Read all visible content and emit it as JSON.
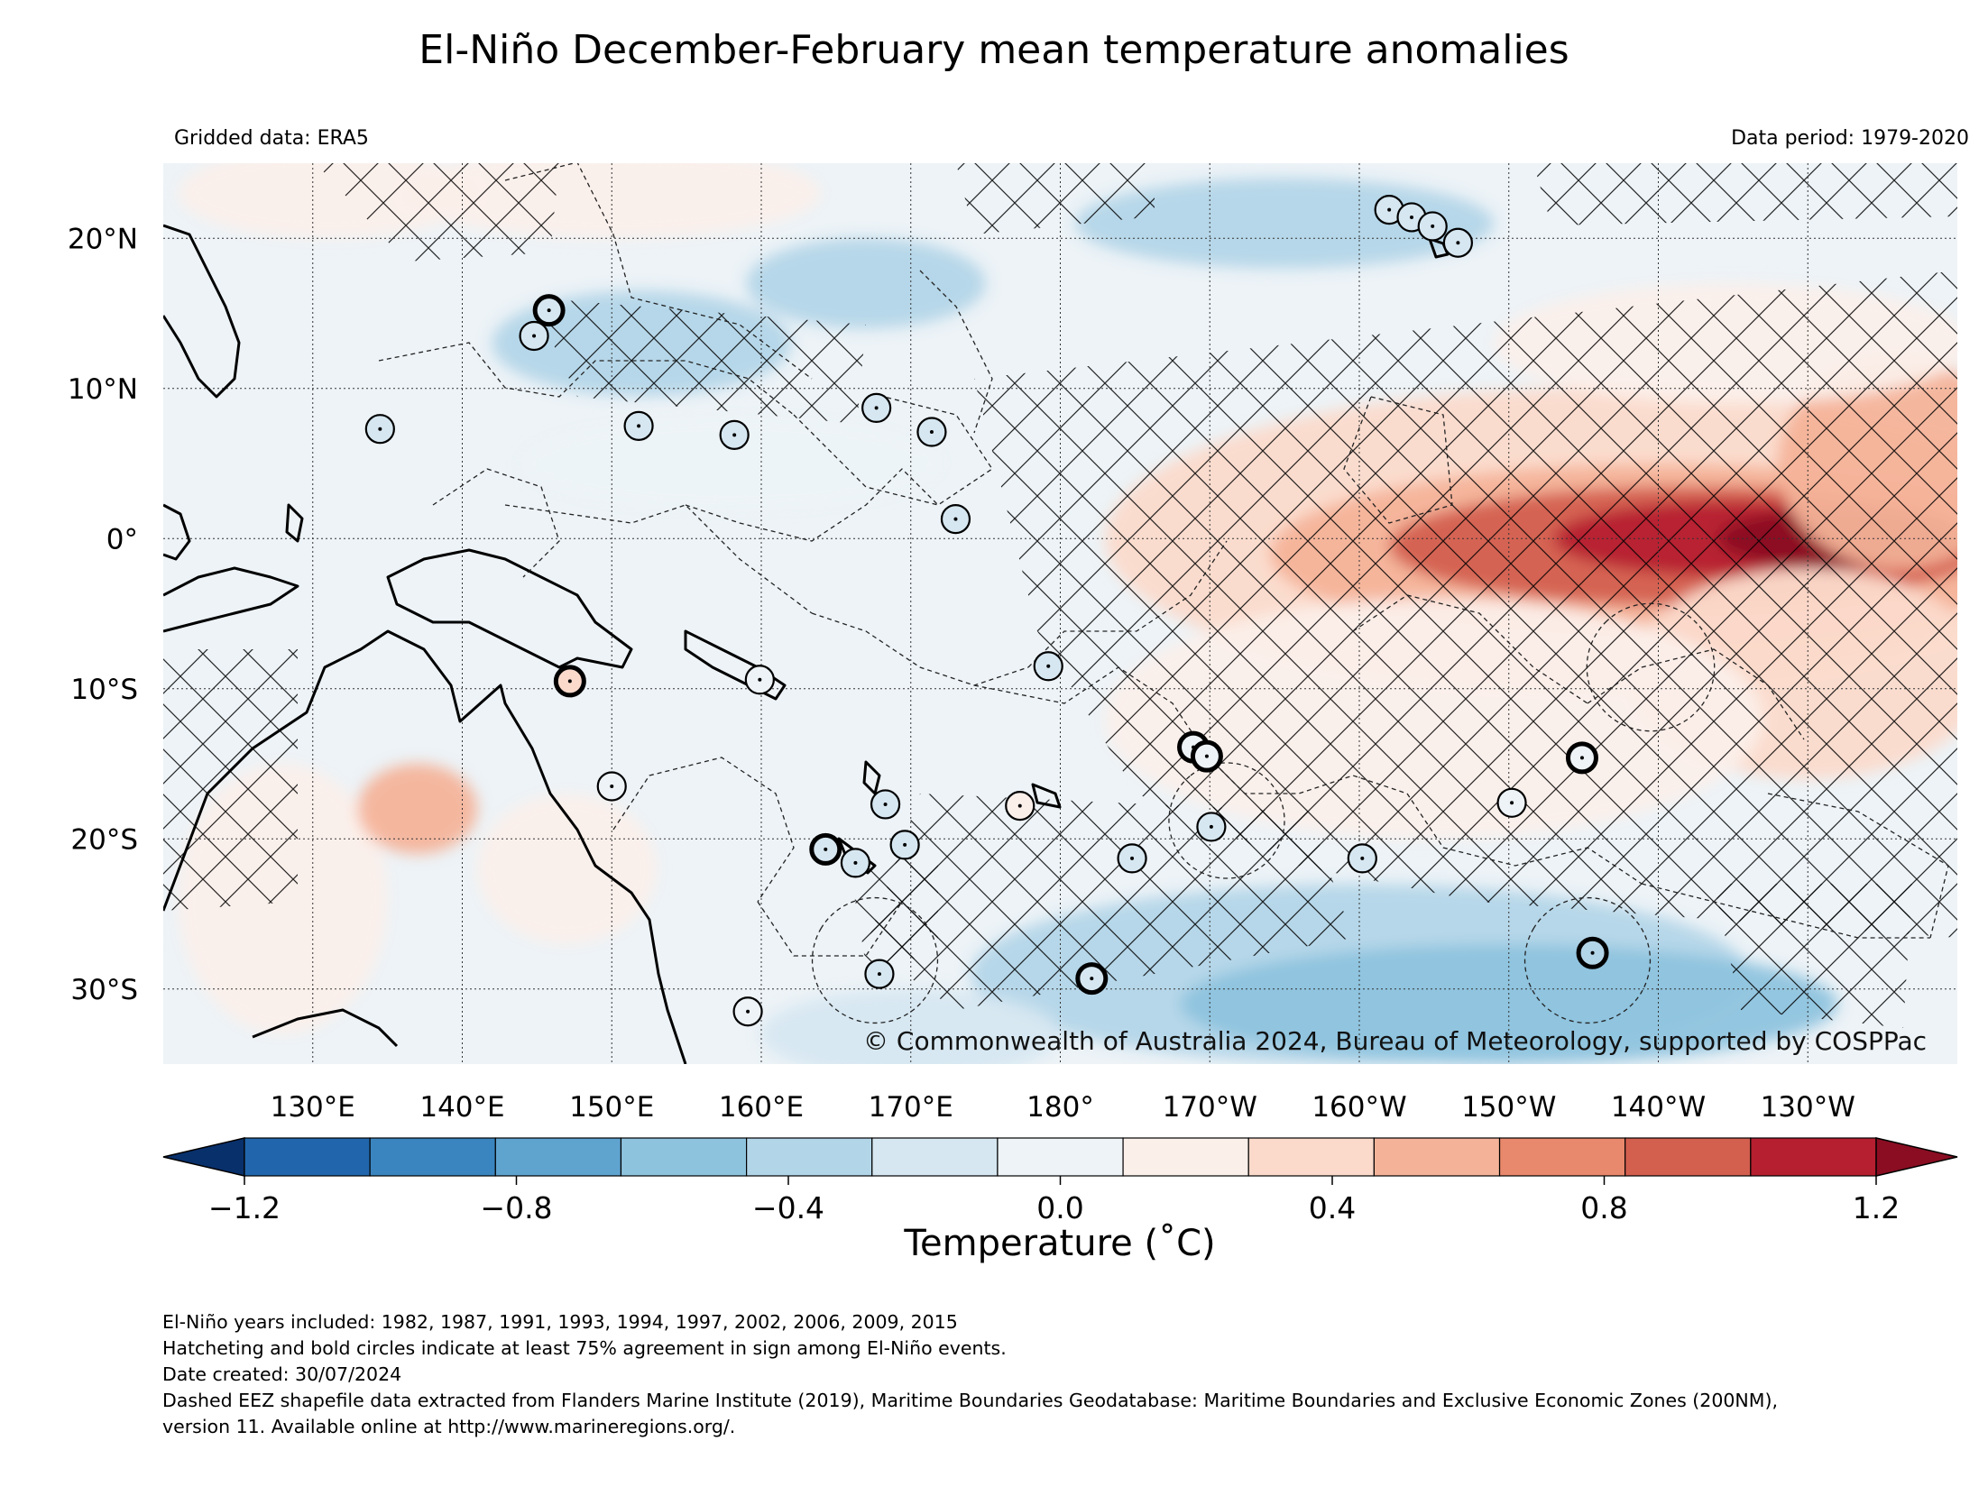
{
  "title": "El-Niño December-February mean temperature anomalies",
  "subtitle_left": "Gridded data: ERA5",
  "subtitle_right": "Data period: 1979-2020",
  "copyright": "© Commonwealth of Australia 2024, Bureau of Meteorology, supported by COSPPac",
  "footnotes": [
    "El-Niño years included: 1982, 1987, 1991, 1993, 1994, 1997, 2002, 2006, 2009, 2015",
    "Hatcheting and bold circles indicate at least 75% agreement in sign among El-Niño events.",
    "Date created: 30/07/2024",
    "Dashed EEZ shapefile data extracted from Flanders Marine Institute (2019), Maritime Boundaries Geodatabase: Maritime Boundaries and Exclusive Economic Zones (200NM),",
    "version 11. Available online at http://www.marineregions.org/."
  ],
  "map": {
    "extent": {
      "lon_min": 120,
      "lon_max": 240,
      "lat_min": -35,
      "lat_max": 25
    },
    "lon_ticks": [
      {
        "lon": 130,
        "label": "130°E"
      },
      {
        "lon": 140,
        "label": "140°E"
      },
      {
        "lon": 150,
        "label": "150°E"
      },
      {
        "lon": 160,
        "label": "160°E"
      },
      {
        "lon": 170,
        "label": "170°E"
      },
      {
        "lon": 180,
        "label": "180°"
      },
      {
        "lon": 190,
        "label": "170°W"
      },
      {
        "lon": 200,
        "label": "160°W"
      },
      {
        "lon": 210,
        "label": "150°W"
      },
      {
        "lon": 220,
        "label": "140°W"
      },
      {
        "lon": 230,
        "label": "130°W"
      }
    ],
    "lat_ticks": [
      {
        "lat": 20,
        "label": "20°N"
      },
      {
        "lat": 10,
        "label": "10°N"
      },
      {
        "lat": 0,
        "label": "0°"
      },
      {
        "lat": -10,
        "label": "10°S"
      },
      {
        "lat": -20,
        "label": "20°S"
      },
      {
        "lat": -30,
        "label": "30°S"
      }
    ],
    "gridlines": true
  },
  "colorbar": {
    "label": "Temperature (˚C)",
    "min": -1.4,
    "max": 1.4,
    "step": 0.2,
    "extend": "both",
    "tick_values": [
      -1.2,
      -0.8,
      -0.4,
      0.0,
      0.4,
      0.8,
      1.2
    ],
    "tick_labels": [
      "−1.2",
      "−0.8",
      "−0.4",
      "0.0",
      "0.4",
      "0.8",
      "1.2"
    ],
    "colors": [
      "#08306b",
      "#2166ac",
      "#3a85bf",
      "#5fa3cf",
      "#8ec3de",
      "#b3d5e8",
      "#d6e7f1",
      "#edf3f7",
      "#fbefea",
      "#fbdacb",
      "#f4b399",
      "#e8886c",
      "#d35f4f",
      "#b61f30",
      "#8a0d22"
    ]
  },
  "stations": [
    {
      "lon": 145.8,
      "lat": 15.2,
      "value": 0.0,
      "bold": true
    },
    {
      "lon": 144.8,
      "lat": 13.5,
      "value": 0.0,
      "bold": false
    },
    {
      "lon": 134.5,
      "lat": 7.3,
      "value": 0.0,
      "bold": false
    },
    {
      "lon": 151.8,
      "lat": 7.5,
      "value": 0.0,
      "bold": false
    },
    {
      "lon": 158.2,
      "lat": 6.9,
      "value": 0.0,
      "bold": false
    },
    {
      "lon": 167.7,
      "lat": 8.7,
      "value": 0.0,
      "bold": false
    },
    {
      "lon": 171.4,
      "lat": 7.1,
      "value": 0.0,
      "bold": false
    },
    {
      "lon": 173.0,
      "lat": 1.3,
      "value": 0.0,
      "bold": false
    },
    {
      "lon": 202.0,
      "lat": 21.9,
      "value": 0.0,
      "bold": false
    },
    {
      "lon": 203.5,
      "lat": 21.4,
      "value": 0.0,
      "bold": false
    },
    {
      "lon": 204.9,
      "lat": 20.8,
      "value": 0.0,
      "bold": false
    },
    {
      "lon": 206.6,
      "lat": 19.7,
      "value": 0.0,
      "bold": false
    },
    {
      "lon": 147.2,
      "lat": -9.5,
      "value": 0.5,
      "bold": true
    },
    {
      "lon": 159.9,
      "lat": -9.4,
      "value": 0.1,
      "bold": false
    },
    {
      "lon": 179.2,
      "lat": -8.5,
      "value": 0.0,
      "bold": false
    },
    {
      "lon": 150.0,
      "lat": -16.5,
      "value": 0.1,
      "bold": false
    },
    {
      "lon": 168.3,
      "lat": -17.7,
      "value": 0.0,
      "bold": false
    },
    {
      "lon": 177.3,
      "lat": -17.8,
      "value": 0.4,
      "bold": false
    },
    {
      "lon": 164.3,
      "lat": -20.7,
      "value": 0.0,
      "bold": true
    },
    {
      "lon": 166.3,
      "lat": -21.6,
      "value": 0.0,
      "bold": false
    },
    {
      "lon": 169.6,
      "lat": -20.4,
      "value": 0.0,
      "bold": false
    },
    {
      "lon": 188.9,
      "lat": -13.9,
      "value": 0.1,
      "bold": true
    },
    {
      "lon": 189.8,
      "lat": -14.5,
      "value": 0.1,
      "bold": true
    },
    {
      "lon": 190.1,
      "lat": -19.2,
      "value": 0.0,
      "bold": false
    },
    {
      "lon": 184.8,
      "lat": -21.3,
      "value": 0.0,
      "bold": false
    },
    {
      "lon": 200.2,
      "lat": -21.3,
      "value": 0.0,
      "bold": false
    },
    {
      "lon": 210.2,
      "lat": -17.6,
      "value": 0.1,
      "bold": false
    },
    {
      "lon": 214.9,
      "lat": -14.6,
      "value": 0.1,
      "bold": true
    },
    {
      "lon": 215.6,
      "lat": -27.6,
      "value": -0.3,
      "bold": true
    },
    {
      "lon": 182.1,
      "lat": -29.3,
      "value": 0.0,
      "bold": true
    },
    {
      "lon": 167.9,
      "lat": -29.0,
      "value": 0.0,
      "bold": false
    },
    {
      "lon": 159.1,
      "lat": -31.5,
      "value": 0.1,
      "bold": false
    }
  ]
}
